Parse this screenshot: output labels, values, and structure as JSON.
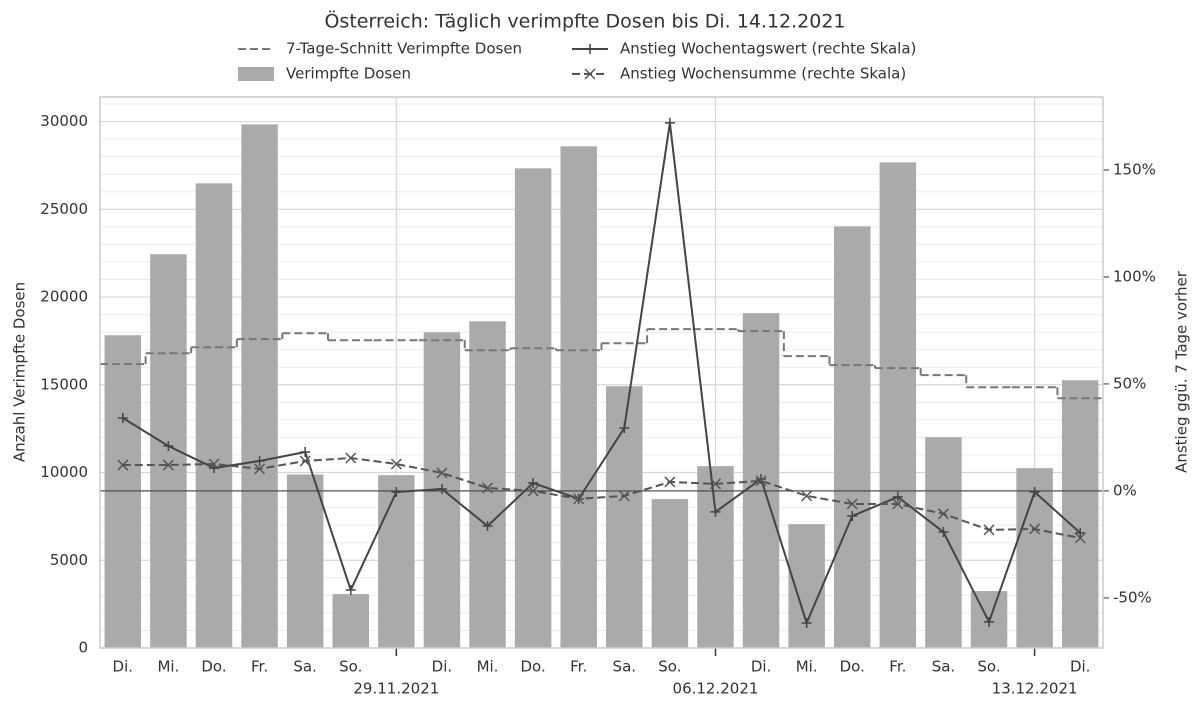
{
  "chart_data": {
    "type": "bar",
    "title": "Österreich: Täglich verimpfte Dosen bis Di. 14.12.2021",
    "ylabel": "Anzahl Verimpfte Dosen",
    "y2label": "Anstieg ggü. 7 Tage vorher",
    "categories": [
      "Di.",
      "Mi.",
      "Do.",
      "Fr.",
      "Sa.",
      "So.",
      null,
      "Di.",
      "Mi.",
      "Do.",
      "Fr.",
      "Sa.",
      "So.",
      null,
      "Di.",
      "Mi.",
      "Do.",
      "Fr.",
      "Sa.",
      "So.",
      null,
      "Di."
    ],
    "xticks": [
      {
        "value": 6,
        "label": "29.11.2021"
      },
      {
        "value": 13,
        "label": "06.12.2021"
      },
      {
        "value": 20,
        "label": "13.12.2021"
      }
    ],
    "ylim": [
      0,
      31400
    ],
    "yticks": [
      0,
      5000,
      10000,
      15000,
      20000,
      25000,
      30000
    ],
    "yminorticks": [
      1000,
      2000,
      3000,
      4000,
      6000,
      7000,
      8000,
      9000,
      11000,
      12000,
      13000,
      14000,
      16000,
      17000,
      18000,
      19000,
      21000,
      22000,
      23000,
      24000,
      26000,
      27000,
      28000,
      29000,
      31000
    ],
    "y2lim": [
      -73.4,
      184.1
    ],
    "y2ticks": [
      {
        "value": -50,
        "label": "-50%"
      },
      {
        "value": 0,
        "label": "0%"
      },
      {
        "value": 50,
        "label": "50%"
      },
      {
        "value": 100,
        "label": "100%"
      },
      {
        "value": 150,
        "label": "150%"
      }
    ],
    "grid": true,
    "series": [
      {
        "name": "7-Tage-Schnitt Verimpfte Dosen",
        "type": "step",
        "color": "#777777",
        "dash": true,
        "values": [
          16175,
          16800,
          17140,
          17600,
          17940,
          17540,
          17540,
          17540,
          16970,
          17080,
          16970,
          17370,
          18170,
          18170,
          18055,
          16630,
          16120,
          15950,
          15550,
          14860,
          14860,
          14235
        ]
      },
      {
        "name": "Verimpfte Dosen",
        "type": "bar",
        "color": "#aaaaaa",
        "values": [
          17825,
          22437,
          26480,
          29840,
          9890,
          3075,
          9850,
          17995,
          18620,
          27335,
          28590,
          14920,
          8485,
          10365,
          19080,
          7060,
          24030,
          27675,
          12015,
          3245,
          10250,
          15260
        ]
      },
      {
        "name": "Anstieg Wochentagswert (rechte Skala)",
        "type": "line",
        "axis": "y2",
        "color": "#444444",
        "marker": "plus",
        "values": [
          34.1,
          21.0,
          10.7,
          14.0,
          18.2,
          -46.3,
          -0.5,
          0.9,
          -16.4,
          3.7,
          -3.7,
          29.4,
          172.0,
          -9.8,
          5.6,
          -61.7,
          -11.7,
          -2.8,
          -19.2,
          -61.2,
          -0.5,
          -19.6
        ]
      },
      {
        "name": "Anstieg Wochensumme (rechte Skala)",
        "type": "line",
        "axis": "y2",
        "color": "#555555",
        "dash": true,
        "marker": "cross",
        "values": [
          12.1,
          12.1,
          12.6,
          10.3,
          14.0,
          15.4,
          12.6,
          8.4,
          1.4,
          0.0,
          -3.7,
          -2.3,
          4.2,
          3.3,
          4.7,
          -2.3,
          -6.1,
          -6.1,
          -10.7,
          -18.2,
          -17.8,
          -22.0
        ]
      }
    ]
  }
}
